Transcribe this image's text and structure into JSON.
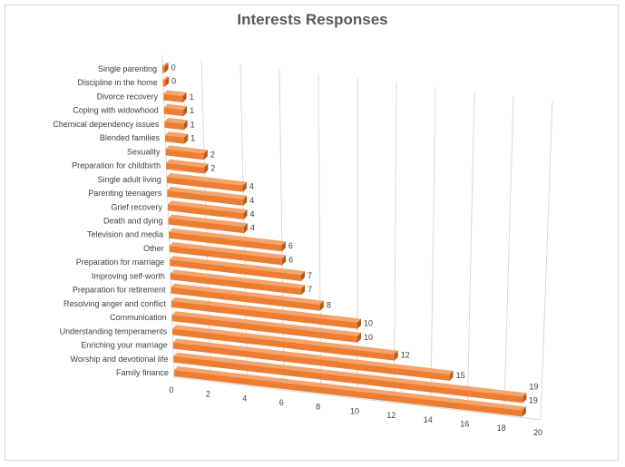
{
  "chart_data": {
    "type": "bar",
    "orientation": "horizontal",
    "style": "3d-perspective",
    "title": "Interests Responses",
    "categories": [
      "Single parenting",
      "Discipline in the home",
      "Divorce recovery",
      "Coping with widowhood",
      "Chemical dependency issues",
      "Blended families",
      "Sexuality",
      "Preparation for childbirth",
      "Single adult living",
      "Parenting teenagers",
      "Grief recovery",
      "Death and dying",
      "Television and media",
      "Other",
      "Preparation for marriage",
      "Improving self-worth",
      "Preparation for retirement",
      "Resolving anger and conflict",
      "Communication",
      "Understanding temperaments",
      "Enriching your marriage",
      "Worship and devotional life",
      "Family finance"
    ],
    "values": [
      0,
      0,
      1,
      1,
      1,
      1,
      2,
      2,
      4,
      4,
      4,
      4,
      6,
      6,
      7,
      7,
      8,
      10,
      10,
      12,
      15,
      19,
      19
    ],
    "xlim": [
      0,
      20
    ],
    "xticks": [
      "0",
      "2",
      "4",
      "6",
      "8",
      "10",
      "12",
      "14",
      "16",
      "18",
      "20"
    ],
    "grid": true,
    "legend": "none",
    "colors": {
      "bar": "#ed7d31",
      "bar_top": "#f4a46c",
      "bar_side": "#b55a1c",
      "grid": "#d9d9d9",
      "text": "#404040",
      "title": "#595959"
    }
  }
}
